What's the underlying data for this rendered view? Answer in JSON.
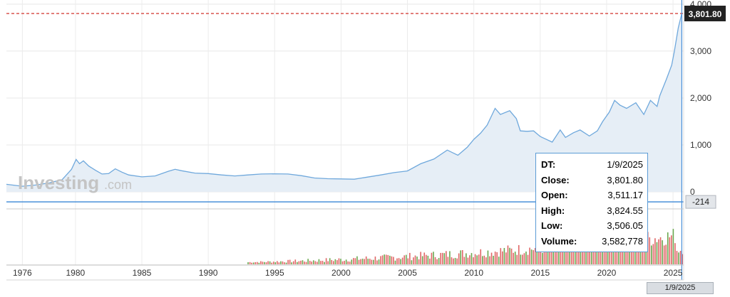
{
  "watermark": {
    "brand": "Investing",
    "suffix": ".com"
  },
  "chart_data": {
    "type": "area",
    "title": "",
    "xlabel": "",
    "ylabel": "",
    "x_tick_labels": [
      "1976",
      "1980",
      "1985",
      "1990",
      "1995",
      "2000",
      "2005",
      "2010",
      "2015",
      "2020",
      "2025"
    ],
    "y_tick_labels": [
      "0",
      "1,000",
      "2,000",
      "3,000",
      "4,000"
    ],
    "y_ticks": [
      0,
      1000,
      2000,
      3000,
      4000
    ],
    "xlim": [
      1974.8,
      2025.8
    ],
    "ylim": [
      -350,
      4050
    ],
    "grid": true,
    "legend": "none",
    "series": [
      {
        "values": [
          [
            1974.8,
            160
          ],
          [
            1976.0,
            120
          ],
          [
            1977.0,
            145
          ],
          [
            1978.0,
            190
          ],
          [
            1979.0,
            260
          ],
          [
            1979.7,
            480
          ],
          [
            1980.05,
            690
          ],
          [
            1980.3,
            600
          ],
          [
            1980.6,
            660
          ],
          [
            1981.0,
            550
          ],
          [
            1981.5,
            460
          ],
          [
            1982.0,
            380
          ],
          [
            1982.5,
            390
          ],
          [
            1983.0,
            490
          ],
          [
            1983.5,
            420
          ],
          [
            1984.0,
            360
          ],
          [
            1985.0,
            320
          ],
          [
            1986.0,
            340
          ],
          [
            1987.0,
            440
          ],
          [
            1987.5,
            480
          ],
          [
            1988.0,
            450
          ],
          [
            1989.0,
            400
          ],
          [
            1990.0,
            390
          ],
          [
            1991.0,
            360
          ],
          [
            1992.0,
            340
          ],
          [
            1993.0,
            360
          ],
          [
            1994.0,
            380
          ],
          [
            1995.0,
            385
          ],
          [
            1996.0,
            380
          ],
          [
            1997.0,
            345
          ],
          [
            1998.0,
            295
          ],
          [
            1999.0,
            280
          ],
          [
            2000.0,
            275
          ],
          [
            2001.0,
            270
          ],
          [
            2002.0,
            315
          ],
          [
            2003.0,
            360
          ],
          [
            2004.0,
            410
          ],
          [
            2005.0,
            445
          ],
          [
            2006.0,
            600
          ],
          [
            2007.0,
            700
          ],
          [
            2008.0,
            890
          ],
          [
            2008.8,
            780
          ],
          [
            2009.5,
            950
          ],
          [
            2010.0,
            1120
          ],
          [
            2010.5,
            1250
          ],
          [
            2011.0,
            1420
          ],
          [
            2011.6,
            1780
          ],
          [
            2012.0,
            1650
          ],
          [
            2012.7,
            1730
          ],
          [
            2013.2,
            1560
          ],
          [
            2013.5,
            1300
          ],
          [
            2014.0,
            1290
          ],
          [
            2014.5,
            1300
          ],
          [
            2015.0,
            1180
          ],
          [
            2015.9,
            1060
          ],
          [
            2016.5,
            1320
          ],
          [
            2016.9,
            1160
          ],
          [
            2017.5,
            1260
          ],
          [
            2018.0,
            1320
          ],
          [
            2018.7,
            1190
          ],
          [
            2019.3,
            1300
          ],
          [
            2019.7,
            1500
          ],
          [
            2020.2,
            1700
          ],
          [
            2020.6,
            1950
          ],
          [
            2021.0,
            1850
          ],
          [
            2021.5,
            1780
          ],
          [
            2022.2,
            1900
          ],
          [
            2022.8,
            1650
          ],
          [
            2023.3,
            1950
          ],
          [
            2023.8,
            1820
          ],
          [
            2024.0,
            2050
          ],
          [
            2024.5,
            2400
          ],
          [
            2024.9,
            2700
          ],
          [
            2025.1,
            3000
          ],
          [
            2025.4,
            3500
          ],
          [
            2025.66,
            3801.8
          ]
        ]
      },
      {
        "name": "Volume",
        "type": "bar",
        "start_year": 1993.0,
        "end_year": 2025.7,
        "bar_count": 240,
        "colors": [
          "#e06666",
          "#6aa84f"
        ]
      }
    ],
    "annotations": {
      "last_price_label": "3,801.80",
      "last_price_value": 3801.8,
      "crosshair_label": "-214",
      "crosshair_value": -214,
      "crosshair_date_label": "1/9/2025",
      "crosshair_x": 2025.66
    }
  },
  "tooltip": {
    "rows": [
      {
        "key": "DT:",
        "value": "1/9/2025"
      },
      {
        "key": "Close:",
        "value": "3,801.80"
      },
      {
        "key": "Open:",
        "value": "3,511.17"
      },
      {
        "key": "High:",
        "value": "3,824.55"
      },
      {
        "key": "Low:",
        "value": "3,506.05"
      },
      {
        "key": "Volume:",
        "value": "3,582,778"
      }
    ]
  },
  "colors": {
    "line": "#6fa8dc",
    "fill": "#e6eef6",
    "price_line": "#d9534f",
    "crosshair": "#4a90d9",
    "last_price_tag": "#222222",
    "crosshair_tag": "#e3e6ea"
  }
}
